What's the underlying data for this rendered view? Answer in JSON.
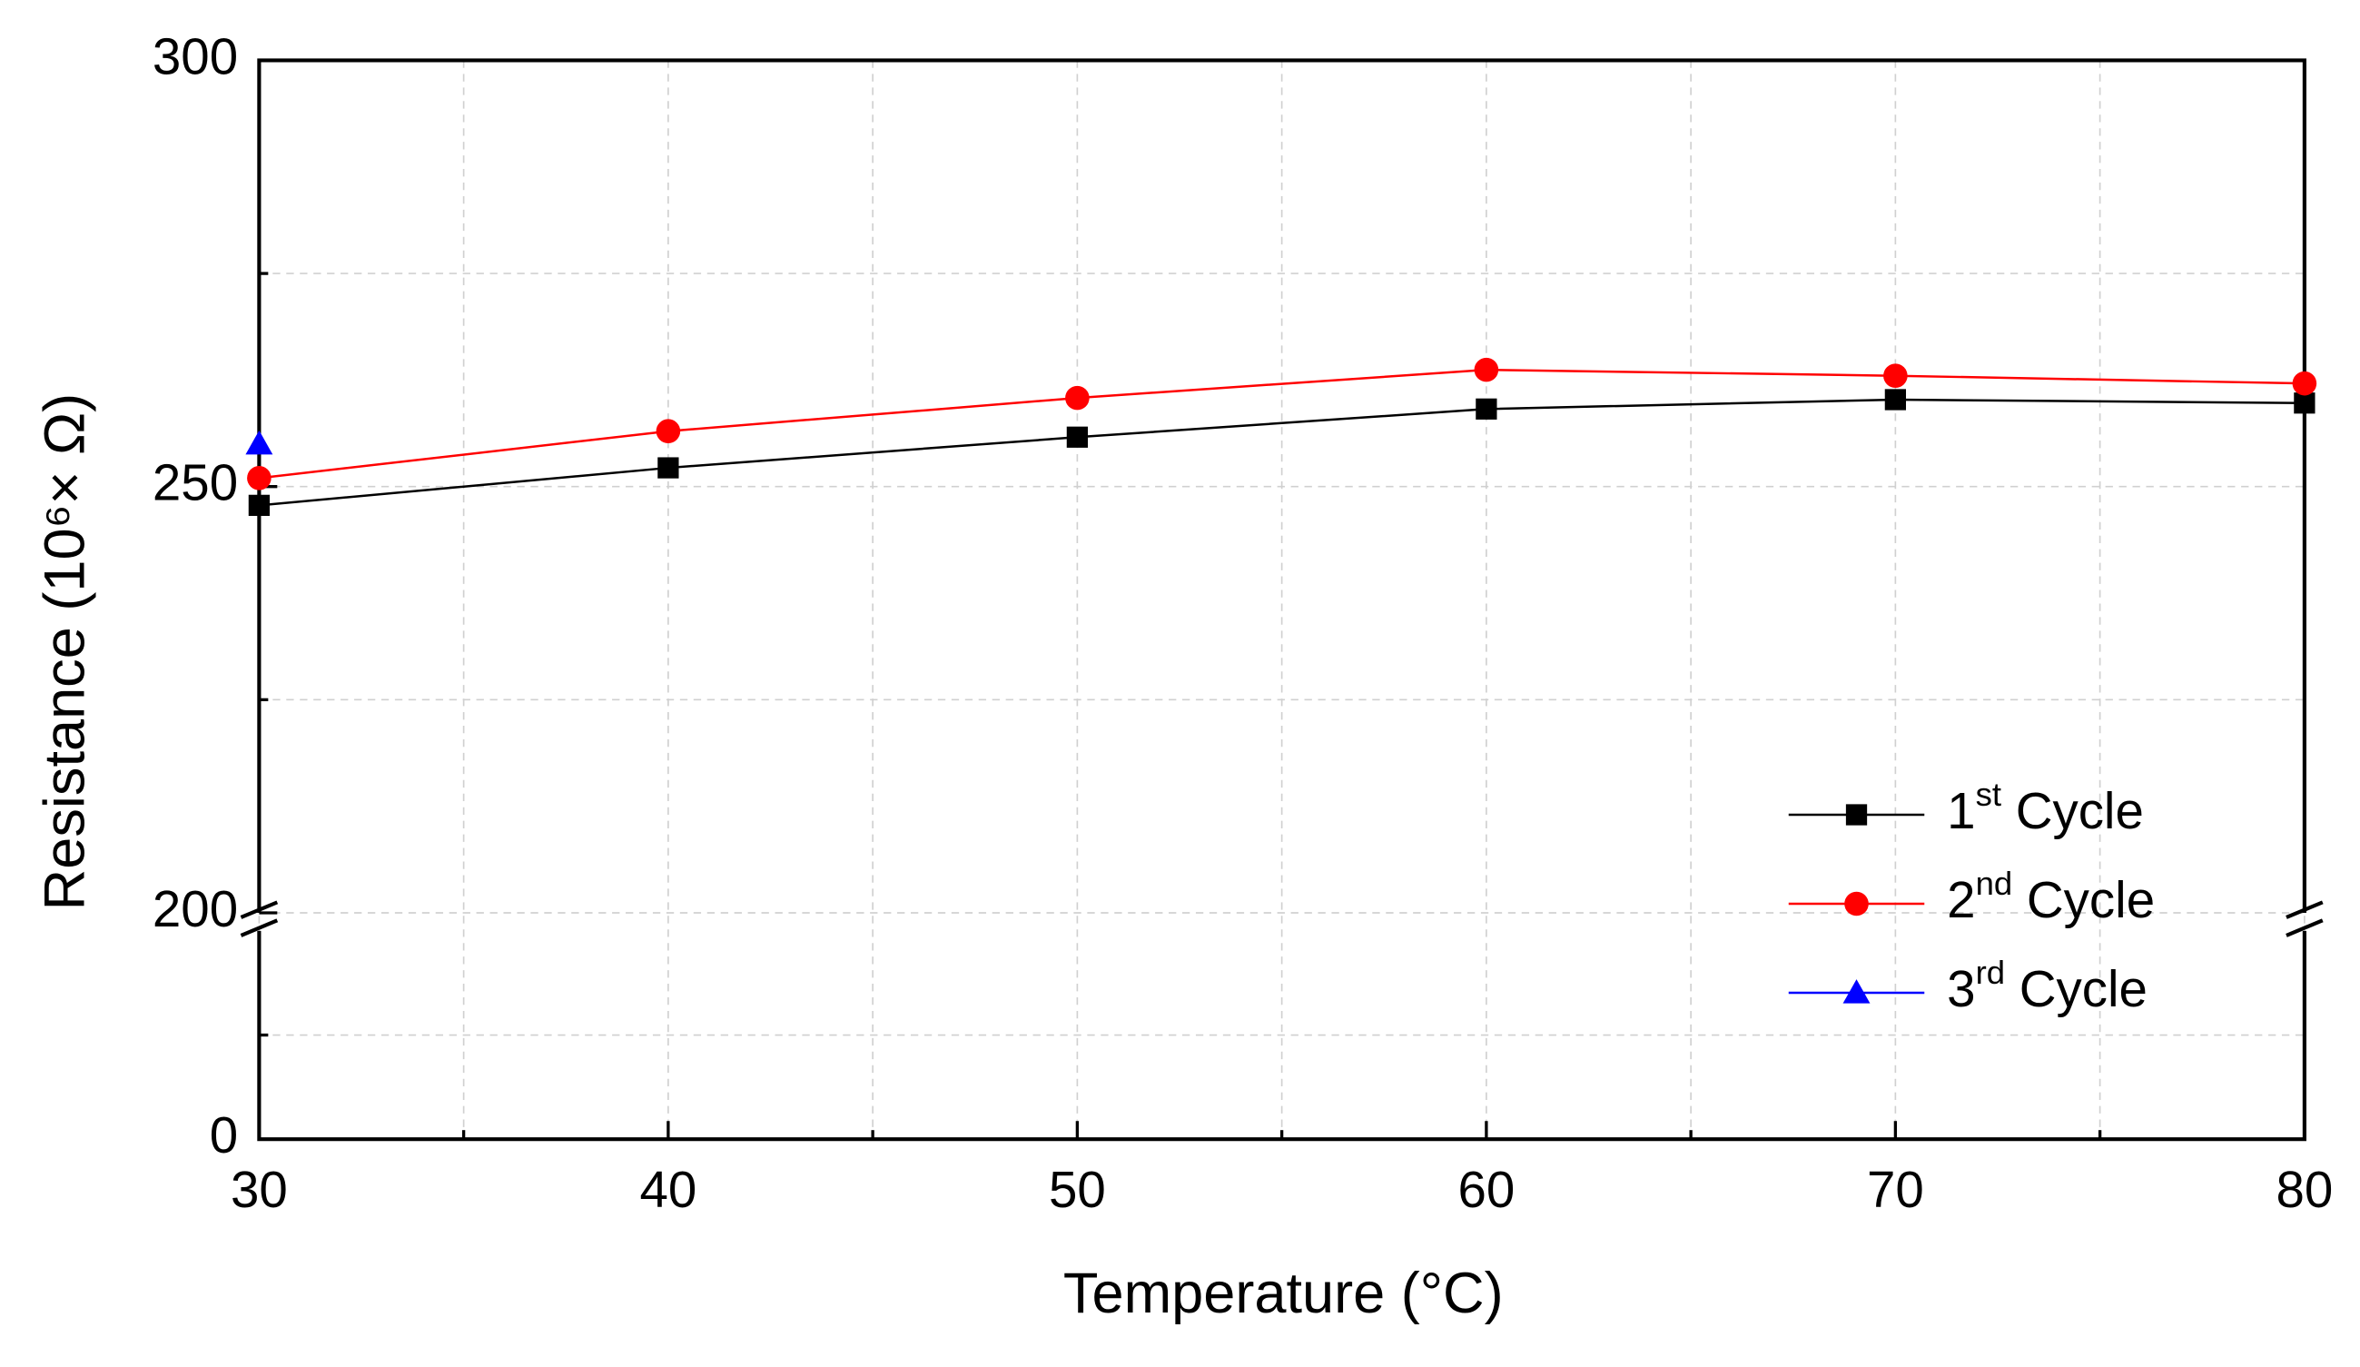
{
  "chart_data": {
    "type": "line",
    "xlabel": "Temperature (°C)",
    "ylabel": "Resistance (10⁶× Ω)",
    "x": [
      30,
      40,
      50,
      60,
      70,
      80
    ],
    "xlim": [
      30,
      80
    ],
    "xticks": [
      30,
      40,
      50,
      60,
      70,
      80
    ],
    "xminor": [
      35,
      45,
      55,
      65,
      75
    ],
    "grid": true,
    "legend": "lower right",
    "y_segments": [
      {
        "ylim": [
          0,
          200
        ],
        "yticks": [
          0
        ],
        "yminor": [
          100
        ]
      },
      {
        "ylim": [
          200,
          300
        ],
        "yticks": [
          200,
          250,
          300
        ],
        "yminor": [
          225,
          275
        ]
      }
    ],
    "series": [
      {
        "name": "1st Cycle",
        "color": "#000000",
        "marker": "square",
        "values": [
          247.8,
          252.2,
          255.8,
          259.1,
          260.2,
          259.8
        ]
      },
      {
        "name": "2nd Cycle",
        "color": "#ff0000",
        "marker": "circle",
        "values": [
          251.0,
          256.5,
          260.4,
          263.7,
          263.0,
          262.1
        ]
      },
      {
        "name": "3rd Cycle",
        "color": "#0000ff",
        "marker": "triangle",
        "values": [
          255.0,
          null,
          null,
          null,
          null,
          null
        ]
      }
    ]
  }
}
